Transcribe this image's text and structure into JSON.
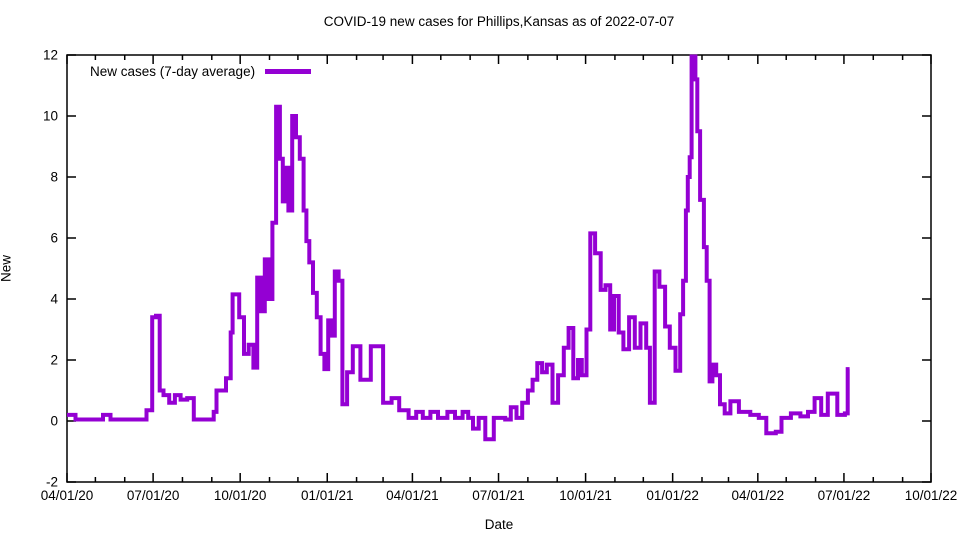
{
  "chart_data": {
    "type": "line",
    "line_style": "steps",
    "title": "COVID-19 new cases for Phillips,Kansas as of 2022-07-07",
    "xlabel": "Date",
    "ylabel": "New",
    "ylim": [
      -2,
      12
    ],
    "yticks": [
      -2,
      0,
      2,
      4,
      6,
      8,
      10,
      12
    ],
    "x_start": "2020-04-01",
    "x_end": "2022-10-01",
    "xtick_labels": [
      "04/01/20",
      "07/01/20",
      "10/01/20",
      "01/01/21",
      "04/01/21",
      "07/01/21",
      "10/01/21",
      "01/01/22",
      "04/01/22",
      "07/01/22",
      "10/01/22"
    ],
    "xtick_interval_months": 3,
    "minor_xtick_interval_months": 1,
    "grid": false,
    "legend": {
      "label": "New cases (7-day average)",
      "position": "top-left"
    },
    "line_color": "#9400D3",
    "axis_color": "#000000",
    "background_color": "#FFFFFF",
    "series": [
      {
        "name": "New cases (7-day average)",
        "points": [
          [
            "2020-04-01",
            0.2
          ],
          [
            "2020-04-08",
            0.2
          ],
          [
            "2020-04-10",
            0.05
          ],
          [
            "2020-05-08",
            0.05
          ],
          [
            "2020-05-09",
            0.2
          ],
          [
            "2020-05-16",
            0.2
          ],
          [
            "2020-05-17",
            0.05
          ],
          [
            "2020-06-23",
            0.05
          ],
          [
            "2020-06-24",
            0.35
          ],
          [
            "2020-06-30",
            3.4
          ],
          [
            "2020-07-04",
            3.45
          ],
          [
            "2020-07-08",
            1.0
          ],
          [
            "2020-07-12",
            0.85
          ],
          [
            "2020-07-18",
            0.6
          ],
          [
            "2020-07-24",
            0.85
          ],
          [
            "2020-07-30",
            0.7
          ],
          [
            "2020-08-06",
            0.75
          ],
          [
            "2020-08-13",
            0.05
          ],
          [
            "2020-09-01",
            0.05
          ],
          [
            "2020-09-03",
            0.3
          ],
          [
            "2020-09-06",
            1.0
          ],
          [
            "2020-09-16",
            1.4
          ],
          [
            "2020-09-21",
            2.9
          ],
          [
            "2020-09-23",
            4.15
          ],
          [
            "2020-09-30",
            3.4
          ],
          [
            "2020-10-05",
            2.2
          ],
          [
            "2020-10-10",
            2.5
          ],
          [
            "2020-10-15",
            1.75
          ],
          [
            "2020-10-19",
            4.7
          ],
          [
            "2020-10-23",
            3.6
          ],
          [
            "2020-10-27",
            5.3
          ],
          [
            "2020-10-31",
            4.0
          ],
          [
            "2020-11-04",
            6.5
          ],
          [
            "2020-11-08",
            10.3
          ],
          [
            "2020-11-12",
            8.6
          ],
          [
            "2020-11-15",
            7.2
          ],
          [
            "2020-11-18",
            8.3
          ],
          [
            "2020-11-21",
            6.9
          ],
          [
            "2020-11-25",
            10.0
          ],
          [
            "2020-11-29",
            9.3
          ],
          [
            "2020-12-03",
            8.6
          ],
          [
            "2020-12-07",
            6.9
          ],
          [
            "2020-12-10",
            5.9
          ],
          [
            "2020-12-13",
            5.2
          ],
          [
            "2020-12-17",
            4.2
          ],
          [
            "2020-12-21",
            3.4
          ],
          [
            "2020-12-25",
            2.2
          ],
          [
            "2020-12-29",
            1.7
          ],
          [
            "2021-01-02",
            3.3
          ],
          [
            "2021-01-06",
            2.8
          ],
          [
            "2021-01-09",
            4.9
          ],
          [
            "2021-01-13",
            4.6
          ],
          [
            "2021-01-17",
            0.55
          ],
          [
            "2021-01-22",
            1.6
          ],
          [
            "2021-01-28",
            2.45
          ],
          [
            "2021-02-05",
            1.35
          ],
          [
            "2021-02-16",
            2.45
          ],
          [
            "2021-03-01",
            0.6
          ],
          [
            "2021-03-10",
            0.75
          ],
          [
            "2021-03-18",
            0.35
          ],
          [
            "2021-03-28",
            0.1
          ],
          [
            "2021-04-05",
            0.3
          ],
          [
            "2021-04-12",
            0.1
          ],
          [
            "2021-04-20",
            0.3
          ],
          [
            "2021-04-28",
            0.1
          ],
          [
            "2021-05-08",
            0.3
          ],
          [
            "2021-05-16",
            0.1
          ],
          [
            "2021-05-24",
            0.3
          ],
          [
            "2021-05-30",
            0.1
          ],
          [
            "2021-06-04",
            -0.25
          ],
          [
            "2021-06-10",
            0.1
          ],
          [
            "2021-06-17",
            -0.6
          ],
          [
            "2021-06-26",
            0.1
          ],
          [
            "2021-07-08",
            0.05
          ],
          [
            "2021-07-14",
            0.45
          ],
          [
            "2021-07-20",
            0.1
          ],
          [
            "2021-07-26",
            0.6
          ],
          [
            "2021-08-01",
            1.0
          ],
          [
            "2021-08-06",
            1.35
          ],
          [
            "2021-08-11",
            1.9
          ],
          [
            "2021-08-16",
            1.6
          ],
          [
            "2021-08-21",
            1.85
          ],
          [
            "2021-08-27",
            0.6
          ],
          [
            "2021-09-02",
            1.5
          ],
          [
            "2021-09-08",
            2.4
          ],
          [
            "2021-09-13",
            3.05
          ],
          [
            "2021-09-18",
            1.4
          ],
          [
            "2021-09-23",
            2.0
          ],
          [
            "2021-09-27",
            1.5
          ],
          [
            "2021-10-02",
            3.0
          ],
          [
            "2021-10-06",
            6.15
          ],
          [
            "2021-10-11",
            5.5
          ],
          [
            "2021-10-17",
            4.3
          ],
          [
            "2021-10-22",
            4.45
          ],
          [
            "2021-10-27",
            3.0
          ],
          [
            "2021-10-31",
            4.1
          ],
          [
            "2021-11-05",
            2.9
          ],
          [
            "2021-11-10",
            2.35
          ],
          [
            "2021-11-16",
            3.4
          ],
          [
            "2021-11-22",
            2.4
          ],
          [
            "2021-11-28",
            3.2
          ],
          [
            "2021-12-04",
            2.4
          ],
          [
            "2021-12-08",
            0.6
          ],
          [
            "2021-12-13",
            4.9
          ],
          [
            "2021-12-18",
            4.4
          ],
          [
            "2021-12-24",
            3.1
          ],
          [
            "2021-12-29",
            2.4
          ],
          [
            "2022-01-04",
            1.65
          ],
          [
            "2022-01-09",
            3.5
          ],
          [
            "2022-01-12",
            4.6
          ],
          [
            "2022-01-15",
            6.9
          ],
          [
            "2022-01-17",
            8.0
          ],
          [
            "2022-01-19",
            8.65
          ],
          [
            "2022-01-21",
            11.95
          ],
          [
            "2022-01-25",
            11.2
          ],
          [
            "2022-01-27",
            9.5
          ],
          [
            "2022-01-30",
            7.25
          ],
          [
            "2022-02-03",
            5.7
          ],
          [
            "2022-02-06",
            4.6
          ],
          [
            "2022-02-09",
            1.3
          ],
          [
            "2022-02-12",
            1.85
          ],
          [
            "2022-02-16",
            1.5
          ],
          [
            "2022-02-20",
            0.55
          ],
          [
            "2022-02-25",
            0.25
          ],
          [
            "2022-03-03",
            0.65
          ],
          [
            "2022-03-12",
            0.3
          ],
          [
            "2022-03-24",
            0.2
          ],
          [
            "2022-04-02",
            0.1
          ],
          [
            "2022-04-10",
            -0.4
          ],
          [
            "2022-04-20",
            -0.35
          ],
          [
            "2022-04-26",
            0.1
          ],
          [
            "2022-05-06",
            0.25
          ],
          [
            "2022-05-16",
            0.15
          ],
          [
            "2022-05-24",
            0.3
          ],
          [
            "2022-05-31",
            0.75
          ],
          [
            "2022-06-07",
            0.2
          ],
          [
            "2022-06-14",
            0.9
          ],
          [
            "2022-06-21",
            0.9
          ],
          [
            "2022-06-24",
            0.2
          ],
          [
            "2022-07-02",
            0.25
          ],
          [
            "2022-07-05",
            1.7
          ],
          [
            "2022-07-07",
            1.7
          ]
        ]
      }
    ]
  }
}
